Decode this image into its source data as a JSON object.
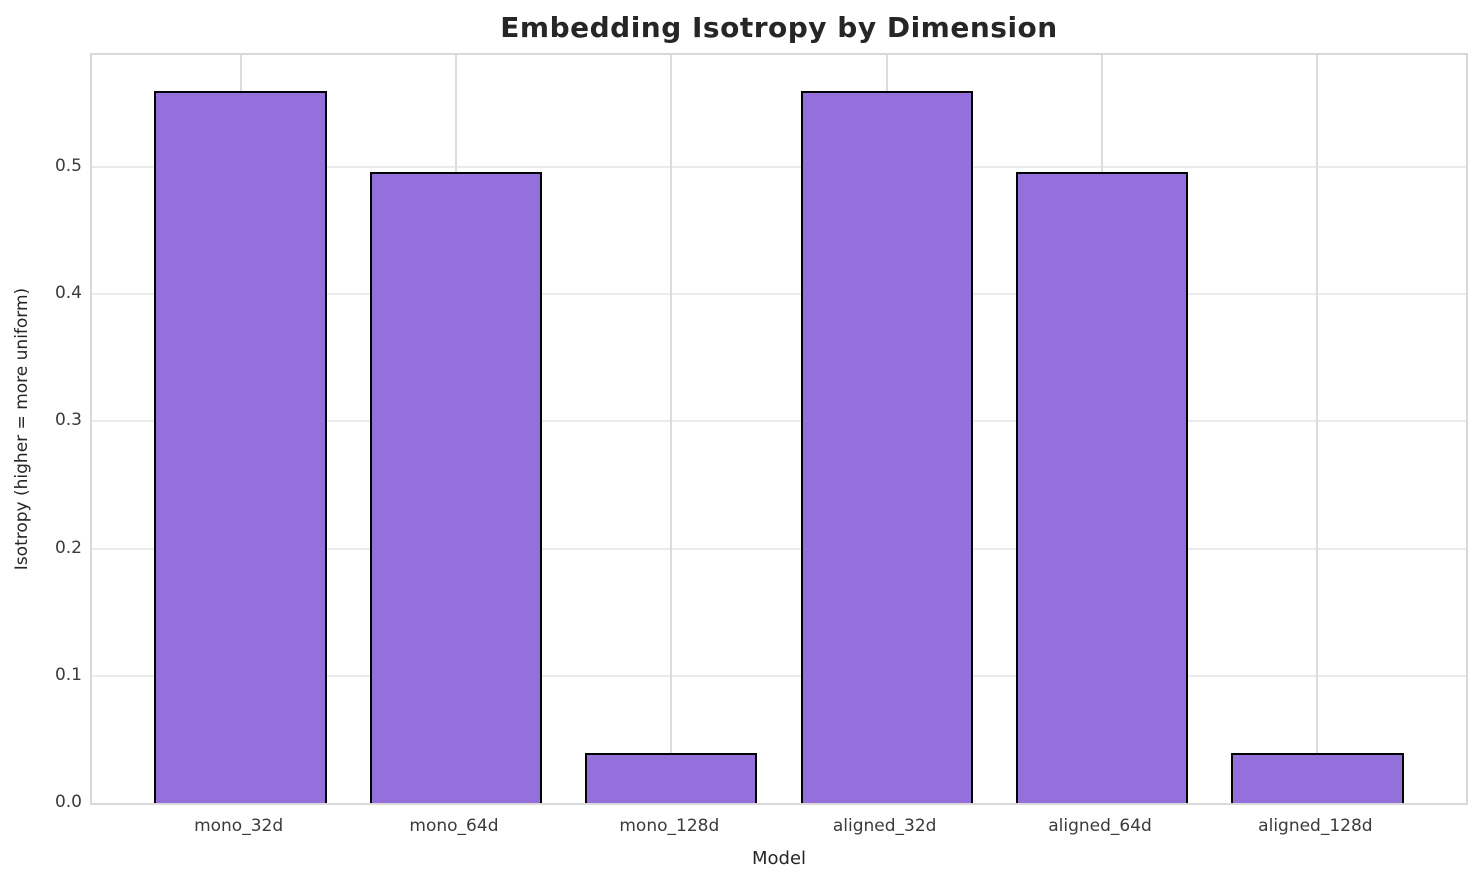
{
  "chart_data": {
    "type": "bar",
    "title": "Embedding Isotropy by Dimension",
    "xlabel": "Model",
    "ylabel": "Isotropy (higher = more uniform)",
    "categories": [
      "mono_32d",
      "mono_64d",
      "mono_128d",
      "aligned_32d",
      "aligned_64d",
      "aligned_128d"
    ],
    "values": [
      0.56,
      0.496,
      0.039,
      0.56,
      0.496,
      0.039
    ],
    "yticks": [
      0.0,
      0.1,
      0.2,
      0.3,
      0.4,
      0.5
    ],
    "ytick_labels": [
      "0.0",
      "0.1",
      "0.2",
      "0.3",
      "0.4",
      "0.5"
    ],
    "ylim": [
      0,
      0.588
    ],
    "xlim": [
      -0.69,
      5.69
    ],
    "bar_width": 0.8,
    "grid": true,
    "legend_position": "none",
    "bar_color": "#9370DB",
    "bar_edge_color": "#000000",
    "grid_color": "#ebebeb",
    "spine_color": "#d9d9d9",
    "text_color": "#262626"
  }
}
